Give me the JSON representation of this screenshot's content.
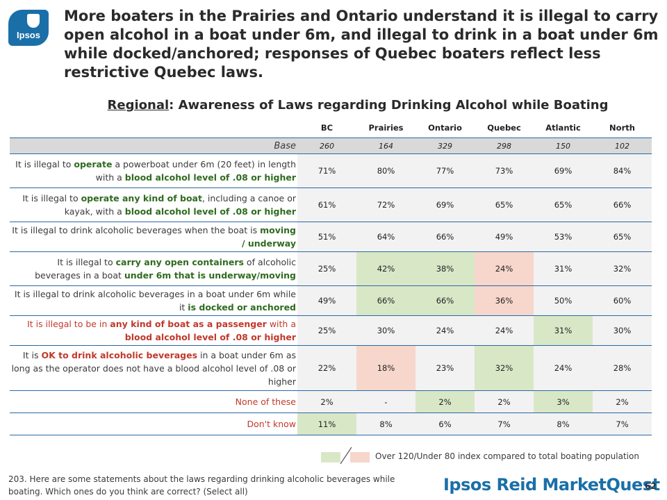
{
  "logo": {
    "text": "Ipsos"
  },
  "headline": "More boaters in the Prairies and Ontario understand it is illegal to carry open alcohol in a boat under 6m, and illegal to drink in a boat under 6m while docked/anchored; responses of Quebec boaters reflect less restrictive Quebec laws.",
  "subtitle": {
    "underlined": "Regional",
    "rest": ": Awareness of Laws regarding Drinking Alcohol while Boating"
  },
  "columns": [
    "BC",
    "Prairies",
    "Ontario",
    "Quebec",
    "Atlantic",
    "North"
  ],
  "base": {
    "label": "Base",
    "values": [
      "260",
      "164",
      "329",
      "298",
      "150",
      "102"
    ]
  },
  "rows": [
    {
      "label_parts": [
        {
          "t": "It is illegal to ",
          "s": ""
        },
        {
          "t": "operate",
          "s": "grn"
        },
        {
          "t": " a powerboat under 6m (20 feet) in length with a ",
          "s": ""
        },
        {
          "t": "blood alcohol level of .08 or higher",
          "s": "grn"
        }
      ],
      "values": [
        "71%",
        "80%",
        "77%",
        "73%",
        "69%",
        "84%"
      ],
      "shading": [
        "n",
        "n",
        "n",
        "n",
        "n",
        "n"
      ]
    },
    {
      "label_parts": [
        {
          "t": "It is illegal to ",
          "s": ""
        },
        {
          "t": "operate any kind of boat",
          "s": "grn"
        },
        {
          "t": ", including a canoe or kayak, with a ",
          "s": ""
        },
        {
          "t": "blood alcohol level of .08 or higher",
          "s": "grn"
        }
      ],
      "values": [
        "61%",
        "72%",
        "69%",
        "65%",
        "65%",
        "66%"
      ],
      "shading": [
        "n",
        "n",
        "n",
        "n",
        "n",
        "n"
      ]
    },
    {
      "label_parts": [
        {
          "t": "It is illegal to drink alcoholic beverages when the boat is ",
          "s": ""
        },
        {
          "t": "moving / underway",
          "s": "grn"
        }
      ],
      "values": [
        "51%",
        "64%",
        "66%",
        "49%",
        "53%",
        "65%"
      ],
      "shading": [
        "n",
        "n",
        "n",
        "n",
        "n",
        "n"
      ]
    },
    {
      "label_parts": [
        {
          "t": "It is illegal to ",
          "s": ""
        },
        {
          "t": "carry any open containers",
          "s": "grn"
        },
        {
          "t": " of alcoholic beverages in a boat ",
          "s": ""
        },
        {
          "t": "under 6m that is underway/moving",
          "s": "grn"
        }
      ],
      "values": [
        "25%",
        "42%",
        "38%",
        "24%",
        "31%",
        "32%"
      ],
      "shading": [
        "n",
        "g",
        "g",
        "r",
        "n",
        "n"
      ]
    },
    {
      "label_parts": [
        {
          "t": "It is illegal to drink alcoholic beverages in a boat under 6m while it ",
          "s": ""
        },
        {
          "t": "is docked or anchored",
          "s": "grn"
        }
      ],
      "values": [
        "49%",
        "66%",
        "66%",
        "36%",
        "50%",
        "60%"
      ],
      "shading": [
        "n",
        "g",
        "g",
        "r",
        "n",
        "n"
      ]
    },
    {
      "label_parts": [
        {
          "t": "It is illegal to be in ",
          "s": "red"
        },
        {
          "t": "any kind of boat as a passenger",
          "s": "redb"
        },
        {
          "t": " with a ",
          "s": "red"
        },
        {
          "t": "blood alcohol level of .08 or higher",
          "s": "redb"
        }
      ],
      "values": [
        "25%",
        "30%",
        "24%",
        "24%",
        "31%",
        "30%"
      ],
      "shading": [
        "n",
        "n",
        "n",
        "n",
        "g",
        "n"
      ]
    },
    {
      "label_parts": [
        {
          "t": "It is ",
          "s": ""
        },
        {
          "t": "OK to drink alcoholic beverages",
          "s": "redb"
        },
        {
          "t": " in a boat under 6m as long as the operator does not have a blood alcohol level of .08 or higher",
          "s": ""
        }
      ],
      "values": [
        "22%",
        "18%",
        "23%",
        "32%",
        "24%",
        "28%"
      ],
      "shading": [
        "n",
        "r",
        "n",
        "g",
        "n",
        "n"
      ]
    },
    {
      "label_parts": [
        {
          "t": "None of these",
          "s": "red"
        }
      ],
      "values": [
        "2%",
        "-",
        "2%",
        "2%",
        "3%",
        "2%"
      ],
      "shading": [
        "n",
        "n",
        "g",
        "n",
        "g",
        "n"
      ]
    },
    {
      "label_parts": [
        {
          "t": "Don't know",
          "s": "red"
        }
      ],
      "values": [
        "11%",
        "8%",
        "6%",
        "7%",
        "8%",
        "7%"
      ],
      "shading": [
        "g",
        "n",
        "n",
        "n",
        "n",
        "n"
      ]
    }
  ],
  "legend": {
    "text": "Over 120/Under 80 index compared to total boating population",
    "colors": {
      "over": "#d8e8c7",
      "under": "#f7d6cc"
    }
  },
  "footnote": "203. Here are some statements about the laws regarding drinking alcoholic beverages while boating. Which ones do you think are correct? (Select all)",
  "brand": "Ipsos Reid MarketQuest",
  "page_number": "62"
}
